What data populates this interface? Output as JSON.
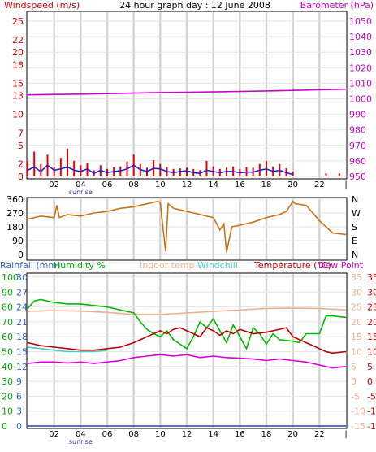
{
  "page": {
    "title": "24 hour graph day : 12 June 2008"
  },
  "chart_data": [
    {
      "id": "wind_pressure",
      "type": "line",
      "title": "24 hour graph day : 12 June 2008",
      "left_axis": {
        "label": "Windspeed (m/s)",
        "range": [
          0,
          25
        ],
        "ticks": [
          0,
          2,
          5,
          7,
          10,
          13,
          15,
          18,
          20,
          22,
          25
        ],
        "color": "#cc0000"
      },
      "right_axis": {
        "label": "Barometer (hPa)",
        "range": [
          950,
          1050
        ],
        "ticks": [
          950,
          960,
          970,
          980,
          990,
          1000,
          1010,
          1020,
          1030,
          1040,
          1050
        ],
        "color": "#cc00cc"
      },
      "x_axis": {
        "range": [
          0,
          24
        ],
        "ticks": [
          "02",
          "04",
          "06",
          "08",
          "10",
          "12",
          "14",
          "16",
          "18",
          "20",
          "22"
        ],
        "marker_label": "sunrise"
      },
      "grid": true,
      "series": [
        {
          "name": "Barometer (hPa)",
          "axis": "right",
          "color": "#cc00cc",
          "x": [
            0,
            2,
            4,
            6,
            8,
            10,
            12,
            14,
            16,
            18,
            20,
            22,
            24
          ],
          "values": [
            1002.5,
            1002.8,
            1003.0,
            1003.3,
            1003.6,
            1004.0,
            1004.2,
            1004.4,
            1004.7,
            1005.0,
            1005.4,
            1005.8,
            1006.2
          ]
        },
        {
          "name": "Wind gust",
          "axis": "left",
          "color": "#ee0000",
          "style": "bars",
          "x": [
            0,
            0.5,
            1,
            1.5,
            2,
            2.5,
            3,
            3.5,
            4,
            4.5,
            5,
            5.5,
            6,
            6.5,
            7,
            7.5,
            8,
            8.5,
            9,
            9.5,
            10,
            10.5,
            11,
            11.5,
            12,
            12.5,
            13,
            13.5,
            14,
            14.5,
            15,
            15.5,
            16,
            16.5,
            17,
            17.5,
            18,
            18.5,
            19,
            19.5,
            20,
            22.5,
            23.5
          ],
          "values": [
            2.5,
            4.0,
            2.0,
            3.5,
            1.5,
            3.0,
            4.5,
            2.5,
            1.8,
            2.2,
            1.0,
            1.8,
            1.2,
            1.5,
            1.6,
            2.4,
            3.5,
            2.0,
            1.4,
            2.6,
            2.0,
            1.5,
            1.2,
            1.3,
            1.4,
            1.2,
            1.0,
            2.5,
            1.6,
            1.2,
            1.4,
            1.6,
            1.2,
            1.5,
            1.4,
            2.0,
            2.5,
            1.6,
            2.0,
            1.3,
            0.8,
            0.5,
            0.5
          ]
        },
        {
          "name": "Wind speed",
          "axis": "left",
          "color": "#2222cc",
          "x": [
            0,
            0.5,
            1,
            1.5,
            2,
            2.5,
            3,
            3.5,
            4,
            4.5,
            5,
            5.5,
            6,
            6.5,
            7,
            7.5,
            8,
            8.5,
            9,
            9.5,
            10,
            10.5,
            11,
            11.5,
            12,
            12.5,
            13,
            13.5,
            14,
            14.5,
            15,
            15.5,
            16,
            16.5,
            17,
            17.5,
            18,
            18.5,
            19,
            19.5,
            20
          ],
          "values": [
            1.0,
            1.5,
            0.8,
            1.8,
            1.0,
            1.2,
            1.5,
            1.0,
            0.8,
            1.2,
            0.5,
            1.0,
            0.6,
            0.8,
            0.9,
            1.2,
            1.8,
            1.1,
            0.8,
            1.3,
            1.2,
            0.8,
            0.6,
            0.8,
            0.9,
            0.6,
            0.5,
            1.0,
            0.8,
            0.6,
            0.8,
            0.8,
            0.6,
            0.7,
            0.7,
            1.0,
            1.2,
            0.8,
            1.0,
            0.6,
            0.3
          ]
        }
      ]
    },
    {
      "id": "wind_direction",
      "type": "line",
      "left_axis": {
        "range": [
          0,
          360
        ],
        "ticks": [
          0,
          90,
          180,
          270,
          360
        ]
      },
      "right_axis": {
        "ticks": [
          "N",
          "W",
          "S",
          "E",
          "N"
        ]
      },
      "x_axis": {
        "range": [
          0,
          24
        ]
      },
      "grid": true,
      "series": [
        {
          "name": "Wind direction",
          "color": "#c87414",
          "x": [
            0,
            1,
            2,
            2.2,
            2.4,
            3,
            4,
            5,
            6,
            7,
            8,
            9,
            9.8,
            10,
            10.4,
            10.6,
            11,
            12,
            13,
            14,
            14.5,
            14.8,
            15,
            15.4,
            16,
            17,
            18,
            19,
            19.5,
            20,
            20.2,
            21,
            22,
            22.5,
            23,
            24
          ],
          "values": [
            230,
            250,
            240,
            320,
            240,
            260,
            250,
            270,
            280,
            300,
            310,
            330,
            345,
            340,
            20,
            330,
            300,
            280,
            260,
            240,
            160,
            200,
            15,
            180,
            190,
            210,
            240,
            260,
            280,
            345,
            330,
            320,
            220,
            180,
            140,
            130
          ]
        }
      ]
    },
    {
      "id": "temp_humidity",
      "type": "line",
      "legend": [
        "Rainfall (mm)",
        "Humidity %",
        "Indoor temp",
        "Windchill",
        "Temperature (°C)",
        "Dew Point"
      ],
      "axes": {
        "humidity": {
          "label": "Humidity %",
          "range": [
            0,
            100
          ],
          "ticks": [
            0,
            10,
            20,
            30,
            40,
            50,
            60,
            70,
            80,
            90,
            100
          ],
          "color": "#00aa00"
        },
        "rainfall": {
          "label": "Rainfall (mm)",
          "range": [
            0,
            30
          ],
          "ticks": [
            0,
            3,
            6,
            9,
            12,
            15,
            18,
            21,
            24,
            27,
            30
          ],
          "color": "#3366cc"
        },
        "temperature": {
          "label": "Temperature (°C)",
          "range": [
            -15,
            35
          ],
          "ticks": [
            -15,
            -10,
            -5,
            0,
            5,
            10,
            15,
            20,
            25,
            30,
            35
          ],
          "color": "#cc0000"
        }
      },
      "x_axis": {
        "range": [
          0,
          24
        ],
        "ticks": [
          "02",
          "04",
          "06",
          "08",
          "10",
          "12",
          "14",
          "16",
          "18",
          "20",
          "22"
        ],
        "marker_label": "sunrise"
      },
      "grid": true,
      "series": [
        {
          "name": "Indoor temp",
          "axis": "temperature",
          "color": "#f0b090",
          "x": [
            0,
            2,
            4,
            6,
            8,
            10,
            12,
            14,
            16,
            18,
            20,
            22,
            24
          ],
          "values": [
            23.5,
            23.8,
            23.6,
            23.2,
            22.5,
            22.5,
            23.0,
            23.5,
            24.0,
            24.5,
            24.6,
            24.5,
            24.0
          ]
        },
        {
          "name": "Humidity %",
          "axis": "humidity",
          "color": "#00bb00",
          "x": [
            0,
            0.5,
            1,
            2,
            3,
            4,
            5,
            6,
            7,
            8,
            8.5,
            9,
            9.5,
            10,
            10.5,
            11,
            11.5,
            12,
            12.5,
            13,
            13.5,
            14,
            14.5,
            15,
            15.5,
            16,
            16.5,
            17,
            17.5,
            18,
            18.5,
            19,
            20,
            20.5,
            21,
            22,
            22.5,
            23,
            24
          ],
          "values": [
            79,
            84,
            85,
            83,
            82,
            82,
            81,
            80,
            78,
            76,
            70,
            65,
            62,
            60,
            64,
            58,
            55,
            52,
            60,
            70,
            66,
            72,
            64,
            56,
            68,
            60,
            52,
            66,
            62,
            55,
            62,
            58,
            57,
            56,
            62,
            62,
            74,
            74,
            73
          ]
        },
        {
          "name": "Temperature (°C)",
          "axis": "temperature",
          "color": "#bb0000",
          "x": [
            0,
            1,
            2,
            3,
            4,
            5,
            6,
            7,
            8,
            8.5,
            9,
            9.5,
            10,
            10.5,
            11,
            11.5,
            12,
            12.5,
            13,
            13.5,
            14,
            14.5,
            15,
            15.5,
            16,
            17,
            18,
            19,
            19.5,
            20,
            20.5,
            21,
            22,
            22.5,
            23,
            24
          ],
          "values": [
            13,
            12,
            11.5,
            11,
            10.5,
            10.5,
            11,
            11.5,
            13,
            14,
            15,
            16,
            17,
            16,
            17.5,
            18,
            17,
            16,
            15,
            18,
            17,
            15.5,
            17,
            16,
            17.5,
            16,
            16.5,
            17.5,
            18,
            15,
            14,
            13,
            11,
            10,
            9.5,
            10
          ]
        },
        {
          "name": "Dew Point",
          "axis": "temperature",
          "color": "#dd00dd",
          "x": [
            0,
            1,
            2,
            3,
            4,
            5,
            6,
            7,
            8,
            9,
            10,
            11,
            12,
            13,
            14,
            15,
            16,
            17,
            18,
            19,
            20,
            21,
            22,
            23,
            24
          ],
          "values": [
            6,
            6.5,
            6.5,
            6.2,
            6.5,
            6,
            6.5,
            7,
            8,
            8.5,
            9,
            8.5,
            9,
            8,
            8.5,
            8,
            7.8,
            7.5,
            7,
            7.5,
            7,
            6.5,
            5.5,
            4.5,
            5
          ]
        },
        {
          "name": "Windchill",
          "axis": "temperature",
          "color": "#44cccc",
          "x": [
            0,
            1,
            2,
            3,
            4,
            5,
            6
          ],
          "values": [
            11.5,
            11,
            10.5,
            10,
            10,
            10,
            10.5
          ]
        },
        {
          "name": "Rainfall (mm)",
          "axis": "rainfall",
          "color": "#2244cc",
          "x": [
            0,
            24
          ],
          "values": [
            0,
            0
          ]
        }
      ]
    }
  ]
}
